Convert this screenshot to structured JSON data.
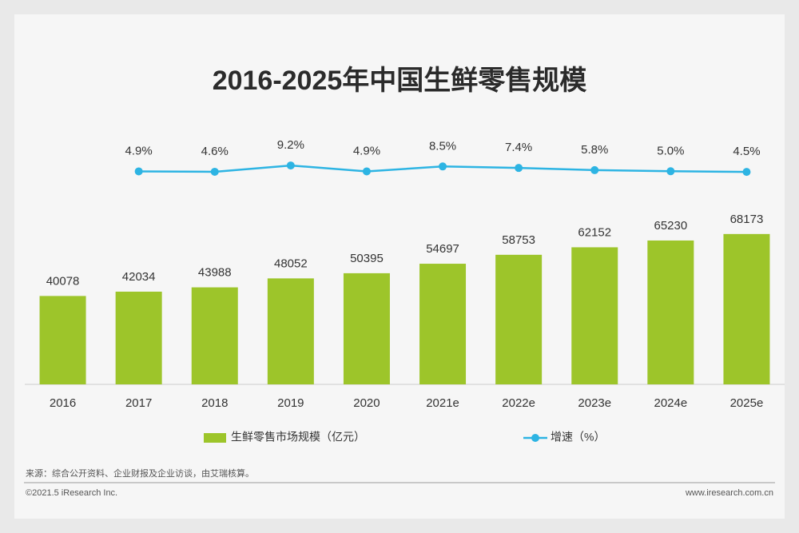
{
  "chart_data": {
    "type": "bar",
    "title": "2016-2025年中国生鲜零售规模",
    "categories": [
      "2016",
      "2017",
      "2018",
      "2019",
      "2020",
      "2021e",
      "2022e",
      "2023e",
      "2024e",
      "2025e"
    ],
    "series": [
      {
        "name": "生鲜零售市场规模（亿元）",
        "type": "bar",
        "color": "#9dc52a",
        "values": [
          40078,
          42034,
          43988,
          48052,
          50395,
          54697,
          58753,
          62152,
          65230,
          68173
        ]
      },
      {
        "name": "增速（%）",
        "type": "line",
        "axis": "y2",
        "color": "#2db4e3",
        "values": [
          null,
          4.9,
          4.6,
          9.2,
          4.9,
          8.5,
          7.4,
          5.8,
          5.0,
          4.5
        ],
        "value_labels": [
          null,
          "4.9%",
          "4.6%",
          "9.2%",
          "4.9%",
          "8.5%",
          "7.4%",
          "5.8%",
          "5.0%",
          "4.5%"
        ]
      }
    ],
    "ylim": [
      0,
      100000
    ],
    "y2lim": [
      -10,
      25
    ],
    "grid": false,
    "legend": "bottom"
  },
  "footer": {
    "source": "来源：综合公开资料、企业财报及企业访谈，由艾瑞核算。",
    "copyright": "©2021.5 iResearch Inc.",
    "url": "www.iresearch.com.cn"
  }
}
